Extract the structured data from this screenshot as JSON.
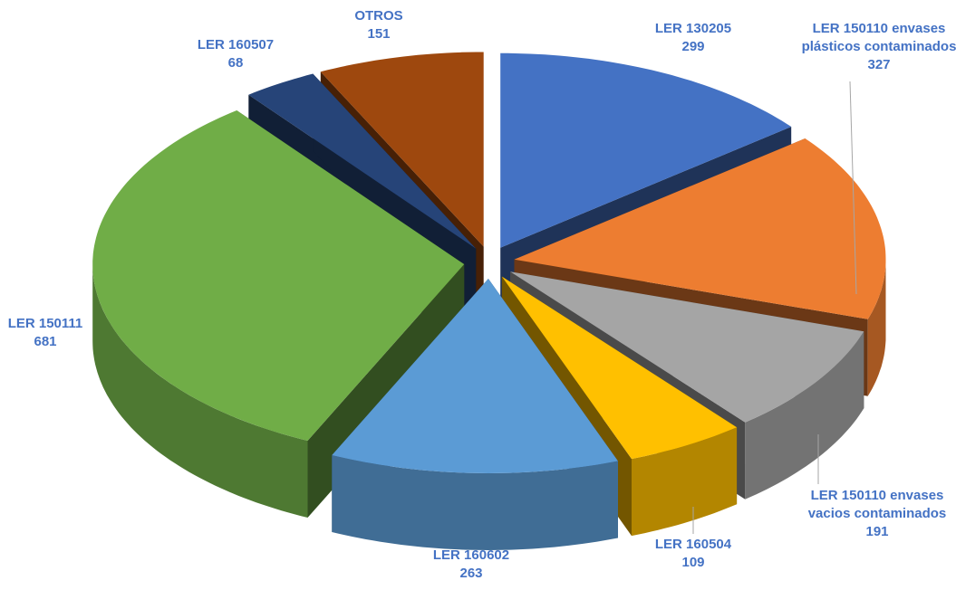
{
  "chart_data": {
    "type": "pie",
    "categories": [
      "LER 130205",
      "LER 150110 envases plásticos contaminados",
      "LER 150110 envases vacios contaminados",
      "LER 160504",
      "LER 160602",
      "LER 150111",
      "LER 160507",
      "OTROS"
    ],
    "values": [
      299,
      327,
      191,
      109,
      263,
      681,
      68,
      151
    ],
    "colors": [
      "#4472c4",
      "#ed7d31",
      "#a5a5a5",
      "#ffc000",
      "#5b9bd5",
      "#70ad47",
      "#264478",
      "#9e480e"
    ]
  }
}
